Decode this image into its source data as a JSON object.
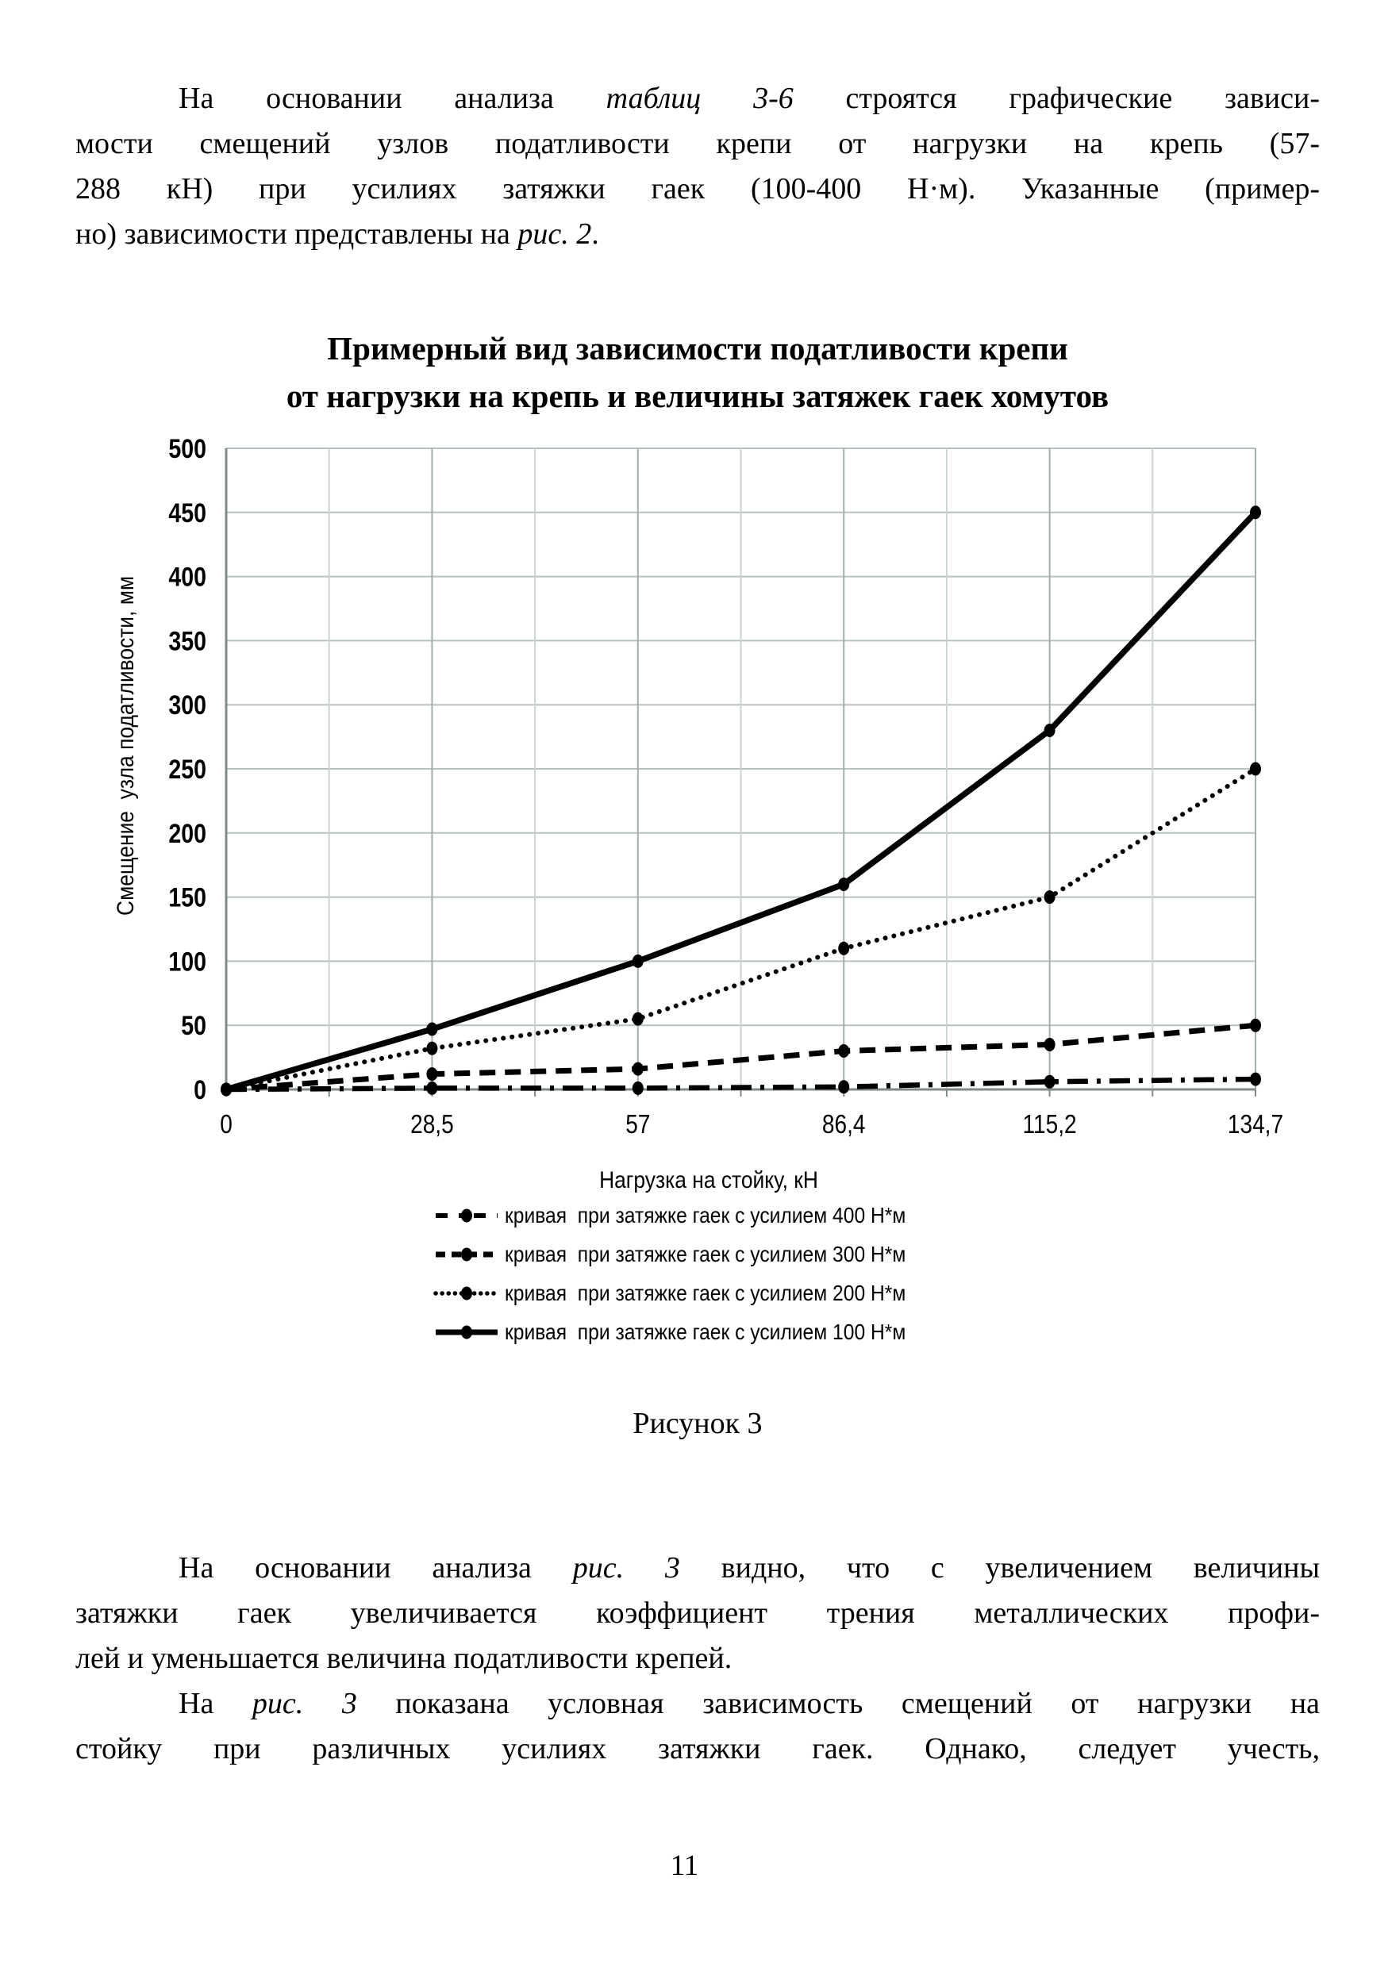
{
  "document": {
    "top_paragraph": {
      "lines": [
        {
          "indent": true,
          "justify": true,
          "runs": [
            {
              "t": "На основании анализа "
            },
            {
              "t": "таблиц 3-6",
              "i": true
            },
            {
              "t": " строятся графические зависи-"
            }
          ]
        },
        {
          "indent": false,
          "justify": true,
          "runs": [
            {
              "t": "мости смещений узлов податливости крепи от нагрузки на крепь (57-"
            }
          ]
        },
        {
          "indent": false,
          "justify": true,
          "runs": [
            {
              "t": "288 кН) при усилиях затяжки гаек (100-400 Н·м). Указанные (пример-"
            }
          ]
        },
        {
          "indent": false,
          "justify": false,
          "runs": [
            {
              "t": "но) зависимости представлены на "
            },
            {
              "t": "рис. 2",
              "i": true
            },
            {
              "t": "."
            }
          ]
        }
      ]
    },
    "figure_title_lines": [
      "Примерный вид зависимости податливости крепи",
      "от нагрузки на крепь и величины затяжек гаек хомутов"
    ],
    "figure_caption": "Рисунок 3",
    "body_paragraph": {
      "lines": [
        {
          "indent": true,
          "justify": true,
          "runs": [
            {
              "t": "На основании анализа "
            },
            {
              "t": "рис. 3",
              "i": true
            },
            {
              "t": " видно, что с увеличением величины"
            }
          ]
        },
        {
          "indent": false,
          "justify": true,
          "runs": [
            {
              "t": "затяжки гаек увеличивается коэффициент трения металлических профи-"
            }
          ]
        },
        {
          "indent": false,
          "justify": false,
          "runs": [
            {
              "t": "лей и уменьшается величина податливости крепей."
            }
          ]
        },
        {
          "indent": true,
          "justify": true,
          "runs": [
            {
              "t": "На "
            },
            {
              "t": "рис. 3",
              "i": true
            },
            {
              "t": " показана условная зависимость смещений от нагрузки на"
            }
          ]
        },
        {
          "indent": false,
          "justify": true,
          "runs": [
            {
              "t": "стойку при различных усилиях затяжки гаек. Однако, следует учесть,"
            }
          ]
        }
      ]
    },
    "page_number": "11"
  },
  "chart_data": {
    "type": "line",
    "title": "Примерный вид зависимости податливости крепи от нагрузки на крепь и величины затяжек гаек хомутов",
    "categories": [
      "0",
      "28,5",
      "57",
      "86,4",
      "115,2",
      "134,7"
    ],
    "x_numeric": [
      0,
      28.5,
      57,
      86.4,
      115.2,
      134.7
    ],
    "xlabel": "Нагрузка на стойку, кН",
    "ylabel": "Смещение  узла податливости, мм",
    "ylim": [
      0,
      500
    ],
    "ytick_step": 50,
    "grid": true,
    "legend_position": "bottom",
    "series": [
      {
        "name": "кривая  при затяжке гаек с усилием 400 Н*м",
        "line_style": "dashdot",
        "values": [
          0,
          1,
          1,
          2,
          6,
          8
        ]
      },
      {
        "name": "кривая  при затяжке гаек с усилием 300 Н*м",
        "line_style": "dashed",
        "values": [
          0,
          12,
          16,
          30,
          35,
          50
        ]
      },
      {
        "name": "кривая  при затяжке гаек с усилием 200 Н*м",
        "line_style": "dotted",
        "values": [
          0,
          32,
          55,
          110,
          150,
          250
        ]
      },
      {
        "name": "кривая  при затяжке гаек с усилием 100 Н*м",
        "line_style": "solid",
        "values": [
          0,
          47,
          100,
          160,
          280,
          450
        ]
      }
    ],
    "colors": {
      "line": "#000000",
      "grid_horizontal": "#b7c1c1",
      "grid_major_vertical": "#a3aeae",
      "grid_minor_vertical": "#ccd6cc",
      "axis": "#7f8a8a",
      "text": "#000000"
    }
  }
}
